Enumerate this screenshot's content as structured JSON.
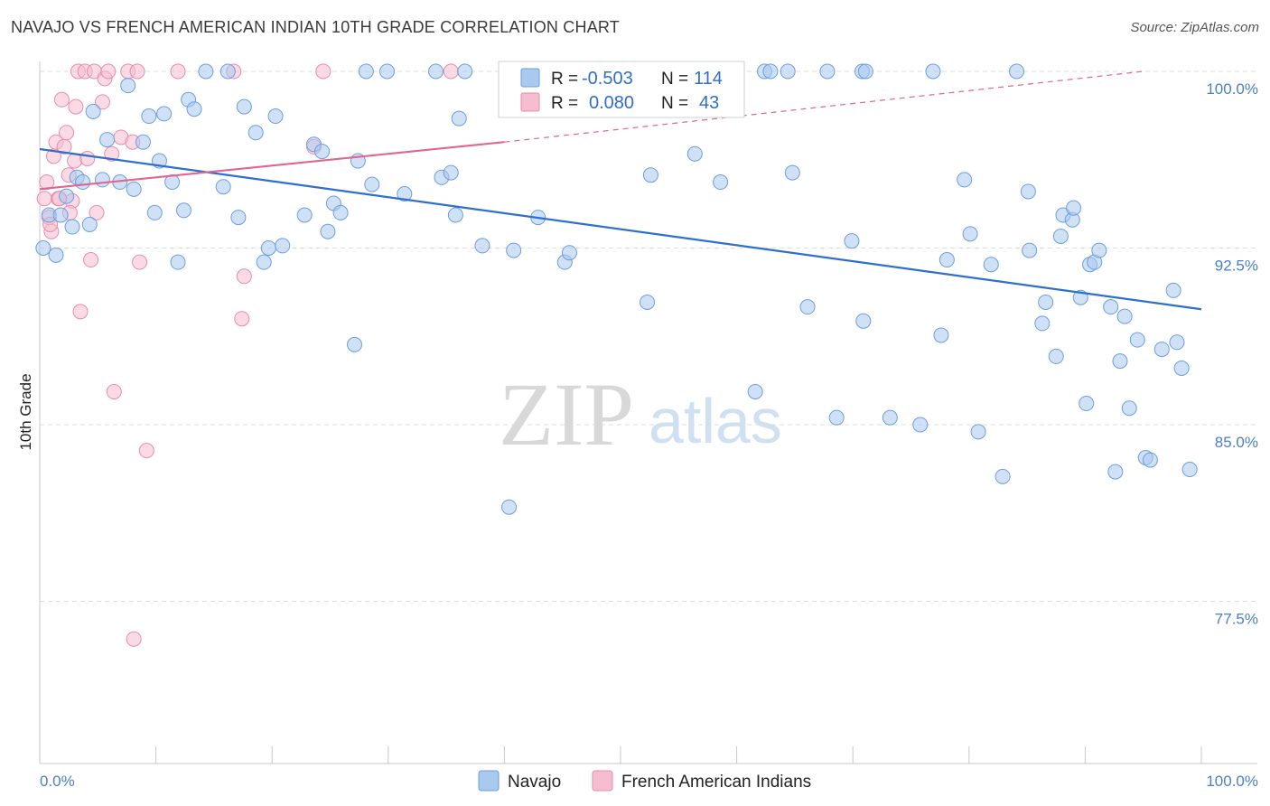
{
  "title": "NAVAJO VS FRENCH AMERICAN INDIAN 10TH GRADE CORRELATION CHART",
  "source": "Source: ZipAtlas.com",
  "watermark": {
    "zip": "ZIP",
    "atlas": "atlas"
  },
  "colors": {
    "navajo_fill": "#a9c9ef",
    "navajo_stroke": "#6b9fde",
    "navajo_line": "#2c6fd0",
    "french_fill": "#f6bdd0",
    "french_stroke": "#e88cab",
    "french_line": "#e0668f",
    "grid": "#dddddd",
    "axis_label": "#4a7fc8"
  },
  "legend": {
    "rows": [
      {
        "r_label": "R =",
        "r_value": "-0.503",
        "n_label": "N =",
        "n_value": "114"
      },
      {
        "r_label": "R =",
        "r_value": "0.080",
        "n_label": "N =",
        "n_value": "43"
      }
    ]
  },
  "bottom_legend": [
    "Navajo",
    "French American Indians"
  ],
  "chart_data": {
    "type": "scatter",
    "title": "NAVAJO VS FRENCH AMERICAN INDIAN 10TH GRADE CORRELATION CHART",
    "xlabel": "",
    "ylabel": "10th Grade",
    "xlim": [
      0,
      100
    ],
    "ylim": [
      70.5,
      101
    ],
    "x_tick_labels": [
      "0.0%",
      "100.0%"
    ],
    "y_ticks": [
      100.0,
      92.5,
      85.0,
      77.5
    ],
    "y_tick_labels": [
      "100.0%",
      "92.5%",
      "85.0%",
      "77.5%"
    ],
    "grid": true,
    "legend_position": "top-center",
    "series": [
      {
        "name": "Navajo",
        "R": -0.503,
        "N": 114,
        "trend": {
          "x0": 0,
          "y0": 96.7,
          "x1": 100,
          "y1": 89.9
        },
        "points": [
          [
            0.3,
            92.5
          ],
          [
            0.8,
            93.9
          ],
          [
            1.4,
            92.2
          ],
          [
            1.8,
            93.9
          ],
          [
            2.3,
            94.7
          ],
          [
            2.8,
            93.4
          ],
          [
            3.2,
            95.5
          ],
          [
            3.7,
            95.3
          ],
          [
            4.3,
            93.5
          ],
          [
            4.6,
            98.3
          ],
          [
            5.4,
            95.4
          ],
          [
            5.8,
            97.1
          ],
          [
            6.9,
            95.3
          ],
          [
            7.6,
            99.4
          ],
          [
            8.1,
            95.0
          ],
          [
            8.9,
            97.0
          ],
          [
            9.4,
            98.1
          ],
          [
            9.9,
            94.0
          ],
          [
            10.3,
            96.2
          ],
          [
            10.7,
            98.2
          ],
          [
            11.4,
            95.3
          ],
          [
            11.9,
            91.9
          ],
          [
            12.4,
            94.1
          ],
          [
            12.8,
            98.8
          ],
          [
            13.3,
            98.4
          ],
          [
            14.3,
            100.0
          ],
          [
            15.8,
            95.1
          ],
          [
            16.2,
            100.0
          ],
          [
            17.1,
            93.8
          ],
          [
            17.6,
            98.5
          ],
          [
            18.6,
            97.4
          ],
          [
            19.3,
            91.9
          ],
          [
            19.7,
            92.5
          ],
          [
            20.3,
            98.1
          ],
          [
            20.9,
            92.6
          ],
          [
            22.8,
            93.9
          ],
          [
            23.6,
            96.9
          ],
          [
            24.3,
            96.6
          ],
          [
            24.8,
            93.2
          ],
          [
            25.3,
            94.4
          ],
          [
            25.9,
            94.0
          ],
          [
            27.1,
            88.4
          ],
          [
            27.4,
            96.2
          ],
          [
            28.1,
            100.0
          ],
          [
            28.6,
            95.2
          ],
          [
            29.9,
            100.0
          ],
          [
            31.4,
            94.8
          ],
          [
            34.1,
            100.0
          ],
          [
            34.6,
            95.5
          ],
          [
            35.4,
            95.7
          ],
          [
            35.8,
            93.9
          ],
          [
            36.1,
            98.0
          ],
          [
            36.6,
            100.0
          ],
          [
            38.1,
            92.6
          ],
          [
            40.4,
            81.5
          ],
          [
            40.8,
            92.4
          ],
          [
            42.9,
            93.8
          ],
          [
            45.2,
            91.9
          ],
          [
            45.6,
            92.3
          ],
          [
            52.3,
            90.2
          ],
          [
            52.6,
            95.6
          ],
          [
            53.1,
            100.0
          ],
          [
            56.4,
            96.5
          ],
          [
            58.6,
            95.3
          ],
          [
            61.6,
            86.4
          ],
          [
            62.4,
            100.0
          ],
          [
            62.9,
            100.0
          ],
          [
            64.4,
            100.0
          ],
          [
            64.8,
            95.7
          ],
          [
            66.1,
            90.0
          ],
          [
            67.8,
            100.0
          ],
          [
            68.6,
            85.3
          ],
          [
            69.9,
            92.8
          ],
          [
            70.8,
            100.0
          ],
          [
            70.9,
            89.4
          ],
          [
            71.1,
            100.0
          ],
          [
            73.2,
            85.3
          ],
          [
            75.8,
            85.0
          ],
          [
            76.9,
            100.0
          ],
          [
            77.6,
            88.8
          ],
          [
            78.1,
            92.0
          ],
          [
            79.6,
            95.4
          ],
          [
            80.1,
            93.1
          ],
          [
            80.8,
            84.7
          ],
          [
            81.9,
            91.8
          ],
          [
            82.9,
            82.8
          ],
          [
            84.1,
            100.0
          ],
          [
            85.1,
            94.9
          ],
          [
            85.2,
            92.4
          ],
          [
            86.3,
            89.3
          ],
          [
            86.6,
            90.2
          ],
          [
            87.5,
            87.9
          ],
          [
            87.9,
            93.0
          ],
          [
            88.1,
            93.9
          ],
          [
            88.9,
            93.7
          ],
          [
            89.0,
            94.2
          ],
          [
            89.6,
            90.4
          ],
          [
            90.1,
            85.9
          ],
          [
            90.4,
            91.8
          ],
          [
            90.8,
            91.9
          ],
          [
            91.2,
            92.4
          ],
          [
            92.2,
            90.0
          ],
          [
            92.6,
            83.0
          ],
          [
            93.0,
            87.7
          ],
          [
            93.4,
            89.6
          ],
          [
            93.8,
            85.7
          ],
          [
            94.5,
            88.6
          ],
          [
            95.2,
            83.6
          ],
          [
            95.6,
            83.5
          ],
          [
            96.6,
            88.2
          ],
          [
            97.6,
            90.7
          ],
          [
            97.9,
            88.5
          ],
          [
            98.3,
            87.4
          ],
          [
            99.0,
            83.1
          ]
        ]
      },
      {
        "name": "French American Indians",
        "R": 0.08,
        "N": 43,
        "trend_solid": {
          "x0": 0,
          "y0": 95.0,
          "x1": 40,
          "y1": 97.0
        },
        "trend_dashed": {
          "x0": 40,
          "y0": 97.0,
          "x1": 95,
          "y1": 100.0
        },
        "points": [
          [
            0.4,
            94.6
          ],
          [
            0.6,
            95.3
          ],
          [
            0.8,
            93.8
          ],
          [
            1.0,
            93.2
          ],
          [
            1.2,
            96.4
          ],
          [
            1.4,
            97.0
          ],
          [
            1.6,
            94.6
          ],
          [
            1.9,
            98.8
          ],
          [
            2.1,
            96.8
          ],
          [
            2.3,
            97.4
          ],
          [
            2.5,
            95.6
          ],
          [
            2.8,
            94.5
          ],
          [
            3.0,
            96.2
          ],
          [
            3.1,
            98.5
          ],
          [
            3.3,
            100.0
          ],
          [
            3.5,
            89.8
          ],
          [
            3.9,
            100.0
          ],
          [
            4.1,
            96.3
          ],
          [
            4.4,
            92.0
          ],
          [
            4.7,
            100.0
          ],
          [
            4.9,
            94.0
          ],
          [
            5.4,
            98.7
          ],
          [
            5.6,
            99.7
          ],
          [
            5.9,
            100.0
          ],
          [
            6.2,
            96.5
          ],
          [
            6.4,
            86.4
          ],
          [
            7.0,
            97.2
          ],
          [
            7.6,
            100.0
          ],
          [
            8.0,
            97.0
          ],
          [
            8.1,
            75.9
          ],
          [
            8.4,
            100.0
          ],
          [
            8.6,
            91.9
          ],
          [
            9.2,
            83.9
          ],
          [
            11.9,
            100.0
          ],
          [
            16.7,
            100.0
          ],
          [
            17.4,
            89.5
          ],
          [
            17.6,
            91.3
          ],
          [
            23.6,
            96.8
          ],
          [
            24.4,
            100.0
          ],
          [
            35.4,
            100.0
          ],
          [
            0.9,
            93.5
          ],
          [
            1.7,
            94.6
          ],
          [
            2.6,
            94.0
          ]
        ]
      }
    ]
  }
}
